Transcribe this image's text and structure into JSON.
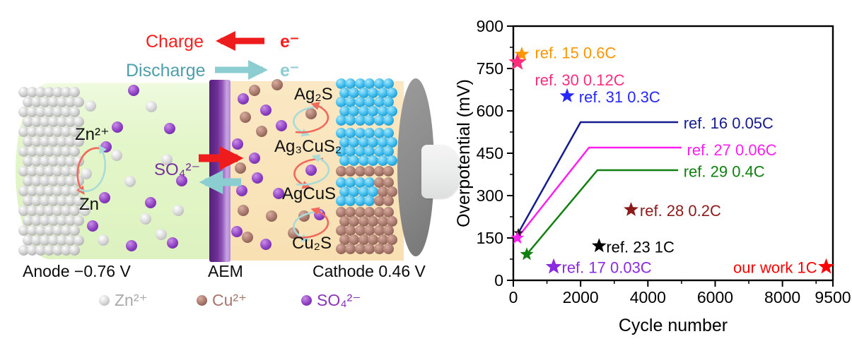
{
  "left_panel": {
    "charge_label": "Charge",
    "charge_electron": "e⁻",
    "discharge_label": "Discharge",
    "discharge_electron": "e⁻",
    "anode_ion_label": "Zn²⁺",
    "anode_metal_label": "Zn",
    "sulfate_ion_label": "SO₄²⁻",
    "cathode_species": [
      "Ag₂S",
      "Ag₃CuS₂",
      "AgCuS",
      "Cu₂S"
    ],
    "anode_caption": "Anode −0.76 V",
    "membrane_caption": "AEM",
    "cathode_caption": "Cathode 0.46 V",
    "legend": [
      {
        "label": "Zn²⁺",
        "text_color": "#a9a9a9",
        "sphere": "s-gray"
      },
      {
        "label": "Cu²⁺",
        "text_color": "#a5766a",
        "sphere": "s-brown"
      },
      {
        "label": "SO₄²⁻",
        "text_color": "#8a35b8",
        "sphere": "s-purple"
      }
    ],
    "colors": {
      "charge_arrow": "#ee1c1c",
      "discharge_arrow": "#8ccdd2",
      "anode_region": "#e3f6c9",
      "cathode_region": "#f8e0b2",
      "membrane": "#6f2f96",
      "cycle_arrow_red": "#f2695c",
      "cycle_arrow_teal": "#a9dbd9"
    }
  },
  "chart_data": {
    "type": "scatter",
    "title": "",
    "xlabel": "Cycle number",
    "ylabel": "Overpotential (mV)",
    "xlim": [
      0,
      9500
    ],
    "ylim": [
      0,
      900
    ],
    "x_major_ticks": [
      0,
      2000,
      4000,
      6000,
      8000,
      9500
    ],
    "x_minor_ticks": [
      1000,
      3000,
      5000,
      7000,
      9000
    ],
    "y_major_ticks": [
      0,
      150,
      300,
      450,
      600,
      750,
      900
    ],
    "y_minor_ticks": [
      75,
      225,
      375,
      525,
      675,
      825
    ],
    "grid": false,
    "frame": true,
    "legend_position": "none",
    "series": [
      {
        "name": "ref. 15 0.6C",
        "color": "#ff9500",
        "marker": "star",
        "marker_size": 11,
        "points": [
          [
            250,
            800
          ]
        ],
        "label_pos": [
          640,
          806
        ],
        "label_anchor": "start"
      },
      {
        "name": "ref. 30 0.12C",
        "color": "#ff2d7c",
        "marker": "star",
        "marker_size": 13,
        "points": [
          [
            120,
            772
          ]
        ],
        "label_pos": [
          640,
          710
        ],
        "label_anchor": "start"
      },
      {
        "name": "ref. 31 0.3C",
        "color": "#2626ff",
        "marker": "star",
        "marker_size": 11,
        "points": [
          [
            1600,
            653
          ]
        ],
        "label_pos": [
          1950,
          650
        ],
        "label_anchor": "start"
      },
      {
        "name": "ref. 16 0.05C",
        "color": "#131b8e",
        "marker": "star",
        "marker_size": 7,
        "marker_color": "#141414",
        "points": [
          [
            150,
            168
          ]
        ],
        "line": [
          [
            150,
            168
          ],
          [
            2000,
            560
          ],
          [
            4900,
            560
          ]
        ],
        "label_pos": [
          5060,
          557
        ],
        "label_anchor": "start"
      },
      {
        "name": "ref. 27 0.06C",
        "color": "#ff1fee",
        "marker": "star",
        "marker_size": 10,
        "points": [
          [
            120,
            150
          ]
        ],
        "line": [
          [
            120,
            150
          ],
          [
            2250,
            470
          ],
          [
            5000,
            470
          ]
        ],
        "label_pos": [
          5160,
          463
        ],
        "label_anchor": "start"
      },
      {
        "name": "ref. 29 0.4C",
        "color": "#118011",
        "marker": "star",
        "marker_size": 10,
        "points": [
          [
            400,
            92
          ]
        ],
        "line": [
          [
            400,
            92
          ],
          [
            2500,
            390
          ],
          [
            4900,
            390
          ]
        ],
        "label_pos": [
          5060,
          386
        ],
        "label_anchor": "start"
      },
      {
        "name": "ref. 28 0.2C",
        "color": "#8c1a1a",
        "marker": "star",
        "marker_size": 11,
        "points": [
          [
            3500,
            250
          ]
        ],
        "label_pos": [
          3760,
          247
        ],
        "label_anchor": "start"
      },
      {
        "name": "ref. 23 1C",
        "color": "#000000",
        "marker": "star",
        "marker_size": 11,
        "points": [
          [
            2550,
            122
          ]
        ],
        "label_pos": [
          2760,
          119
        ],
        "label_anchor": "start"
      },
      {
        "name": "ref. 17 0.03C",
        "color": "#8a2be2",
        "marker": "star",
        "marker_size": 12,
        "points": [
          [
            1200,
            48
          ]
        ],
        "label_pos": [
          1440,
          46
        ],
        "label_anchor": "start"
      },
      {
        "name": "our work 1C",
        "color": "#ff0000",
        "marker": "star",
        "marker_size": 12,
        "points": [
          [
            9300,
            48
          ]
        ],
        "label_pos": [
          9030,
          46
        ],
        "label_anchor": "end"
      }
    ]
  }
}
